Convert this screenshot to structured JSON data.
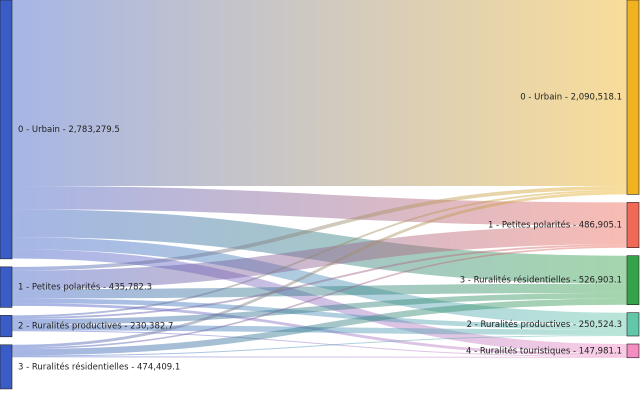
{
  "chart_data": {
    "type": "sankey",
    "sources": [
      {
        "label": "0 - Urbain - 2,783,279.5",
        "value": 2783279.5,
        "color": "#3a5cc6"
      },
      {
        "label": "1 - Petites polarités - 435,782.3",
        "value": 435782.3,
        "color": "#3a5cc6"
      },
      {
        "label": "2 - Ruralités productives - 230,382.7",
        "value": 230382.7,
        "color": "#3a5cc6"
      },
      {
        "label": "3 - Ruralités résidentielles - 474,409.1",
        "value": 474409.1,
        "color": "#3a5cc6"
      }
    ],
    "targets": [
      {
        "label": "0 - Urbain - 2,090,518.1",
        "value": 2090518.1,
        "color": "#f0b21f"
      },
      {
        "label": "1 - Petites polarités - 486,905.1",
        "value": 486905.1,
        "color": "#f06a57"
      },
      {
        "label": "3 - Ruralités résidentielles - 526,903.1",
        "value": 526903.1,
        "color": "#35a348"
      },
      {
        "label": "2 - Ruralités productives - 250,524.3",
        "value": 250524.3,
        "color": "#62c6a9"
      },
      {
        "label": "4 - Ruralités touristiques - 147,981.1",
        "value": 147981.1,
        "color": "#f38dc2"
      }
    ],
    "links": [
      {
        "source": 0,
        "target": 0,
        "value": 2000000
      },
      {
        "source": 0,
        "target": 1,
        "value": 250000
      },
      {
        "source": 0,
        "target": 2,
        "value": 300000
      },
      {
        "source": 0,
        "target": 3,
        "value": 130000
      },
      {
        "source": 0,
        "target": 4,
        "value": 100000
      },
      {
        "source": 1,
        "target": 0,
        "value": 40000
      },
      {
        "source": 1,
        "target": 1,
        "value": 200000
      },
      {
        "source": 1,
        "target": 2,
        "value": 100000
      },
      {
        "source": 1,
        "target": 3,
        "value": 50000
      },
      {
        "source": 1,
        "target": 4,
        "value": 30000
      },
      {
        "source": 2,
        "target": 0,
        "value": 20000
      },
      {
        "source": 2,
        "target": 1,
        "value": 20000
      },
      {
        "source": 2,
        "target": 2,
        "value": 60000
      },
      {
        "source": 2,
        "target": 3,
        "value": 60000
      },
      {
        "source": 2,
        "target": 4,
        "value": 10000
      },
      {
        "source": 3,
        "target": 0,
        "value": 30000
      },
      {
        "source": 3,
        "target": 1,
        "value": 16905
      },
      {
        "source": 3,
        "target": 2,
        "value": 66903
      },
      {
        "source": 3,
        "target": 3,
        "value": 10524
      },
      {
        "source": 3,
        "target": 4,
        "value": 7981
      }
    ]
  }
}
